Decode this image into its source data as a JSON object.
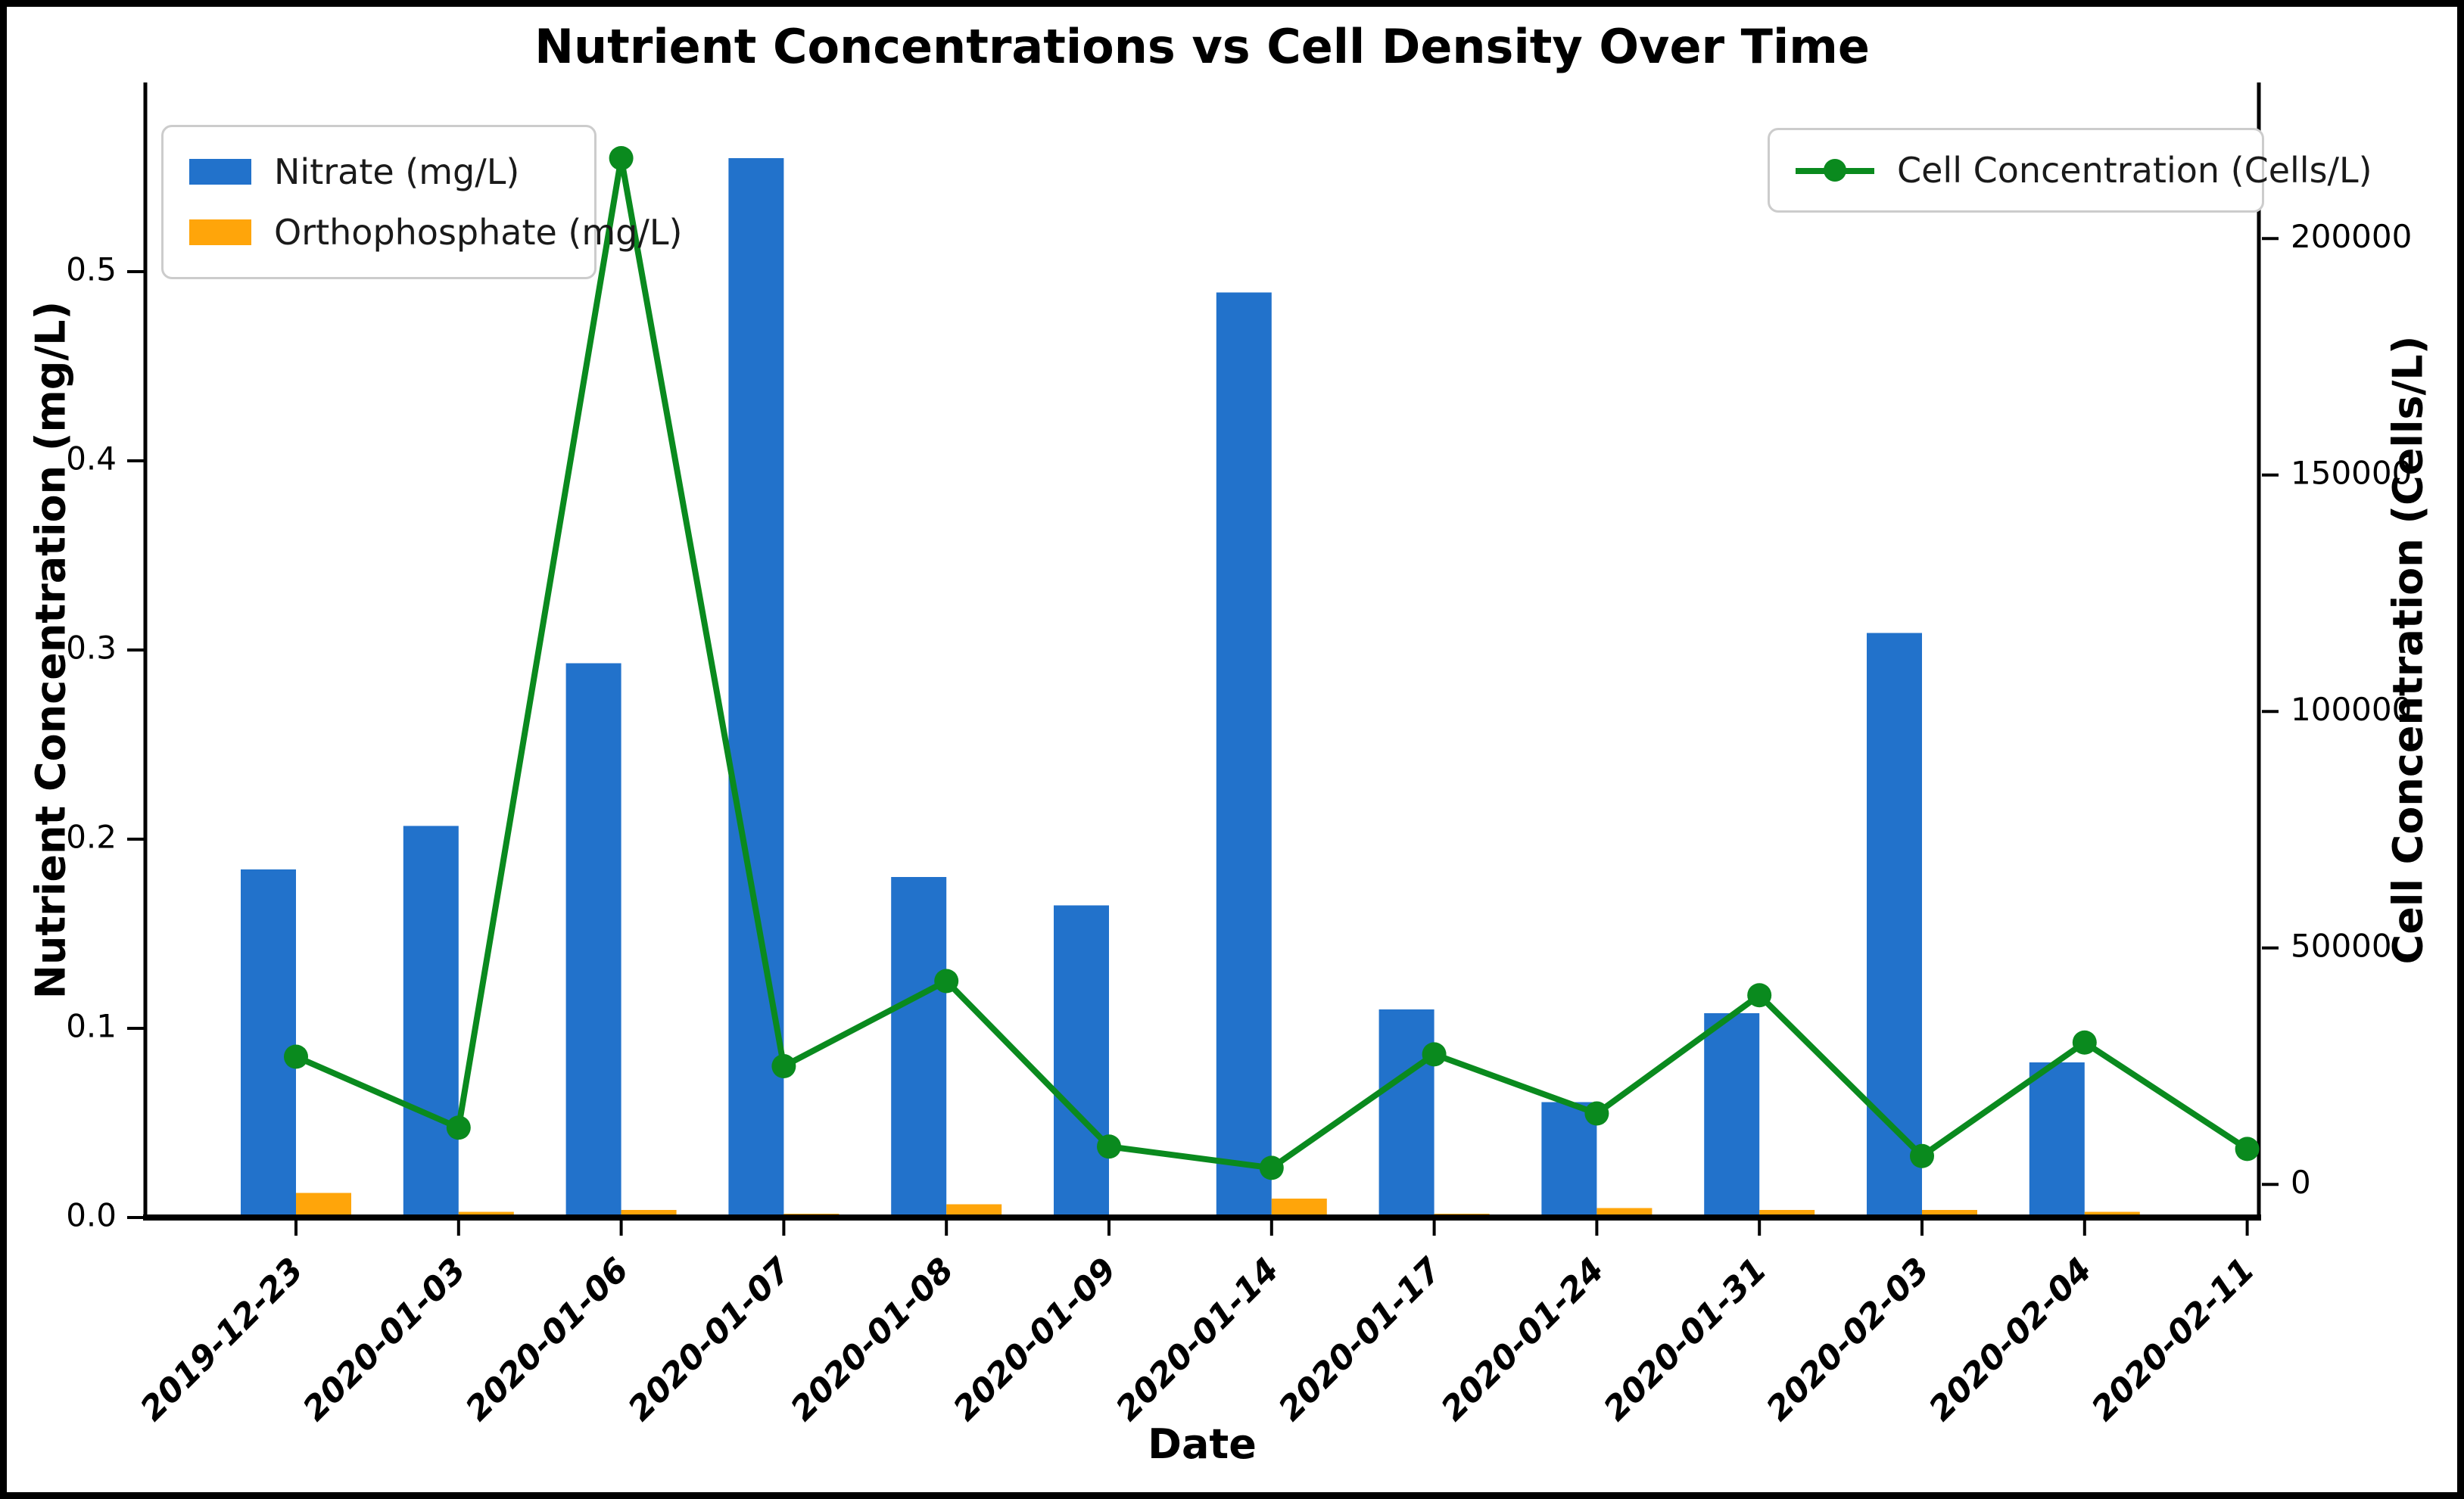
{
  "title": "Nutrient Concentrations vs Cell Density Over Time",
  "axes": {
    "x": {
      "title": "Date"
    },
    "left": {
      "title": "Nutrient Concentration (mg/L)"
    },
    "right": {
      "title": "Cell Concentration (Cells/L)"
    }
  },
  "colors": {
    "nitrate_blue": "#2272CB",
    "orthophosphate_orange": "#FFA50A",
    "cells_green": "#0A8A1E",
    "axis_black": "#000000",
    "legend_border_gray": "#CCCCCC",
    "background": "#FFFFFF"
  },
  "chart_data": {
    "type": "bar",
    "subtype": "grouped-bars-with-line-overlay",
    "title": "Nutrient Concentrations vs Cell Density Over Time",
    "xlabel": "Date",
    "ylabel_left": "Nutrient Concentration (mg/L)",
    "ylabel_right": "Cell Concentration (Cells/L)",
    "grid": false,
    "legend_positions": [
      "upper left",
      "upper right"
    ],
    "categories": [
      "2019-12-23",
      "2020-01-03",
      "2020-01-06",
      "2020-01-07",
      "2020-01-08",
      "2020-01-09",
      "2020-01-14",
      "2020-01-17",
      "2020-01-24",
      "2020-01-31",
      "2020-02-03",
      "2020-02-04",
      "2020-02-11"
    ],
    "series": [
      {
        "name": "Nitrate (mg/L)",
        "type": "bar",
        "axis": "left",
        "color": "#2272CB",
        "values": [
          0.184,
          0.207,
          0.293,
          0.56,
          0.18,
          0.165,
          0.489,
          0.11,
          0.061,
          0.108,
          0.309,
          0.082,
          0
        ]
      },
      {
        "name": "Orthophosphate (mg/L)",
        "type": "bar",
        "axis": "left",
        "color": "#FFA50A",
        "values": [
          0.013,
          0.003,
          0.004,
          0.002,
          0.007,
          0.001,
          0.01,
          0.002,
          0.005,
          0.004,
          0.004,
          0.003,
          0
        ]
      },
      {
        "name": "Cell Concentration (Cells/L)",
        "type": "line",
        "axis": "right",
        "color": "#0A8A1E",
        "values": [
          27000,
          12000,
          217000,
          25000,
          43000,
          8000,
          3500,
          27500,
          15000,
          40000,
          6000,
          30000,
          7500
        ]
      }
    ],
    "left_axis": {
      "min": 0,
      "max": 0.6,
      "ticks": [
        0.0,
        0.1,
        0.2,
        0.3,
        0.4,
        0.5
      ],
      "tick_labels": [
        "0.0",
        "0.1",
        "0.2",
        "0.3",
        "0.4",
        "0.5"
      ]
    },
    "right_axis": {
      "min": -7000,
      "max": 233000,
      "ticks": [
        0,
        50000,
        100000,
        150000,
        200000
      ],
      "tick_labels": [
        "0",
        "50000",
        "100000",
        "150000",
        "200000"
      ]
    }
  }
}
